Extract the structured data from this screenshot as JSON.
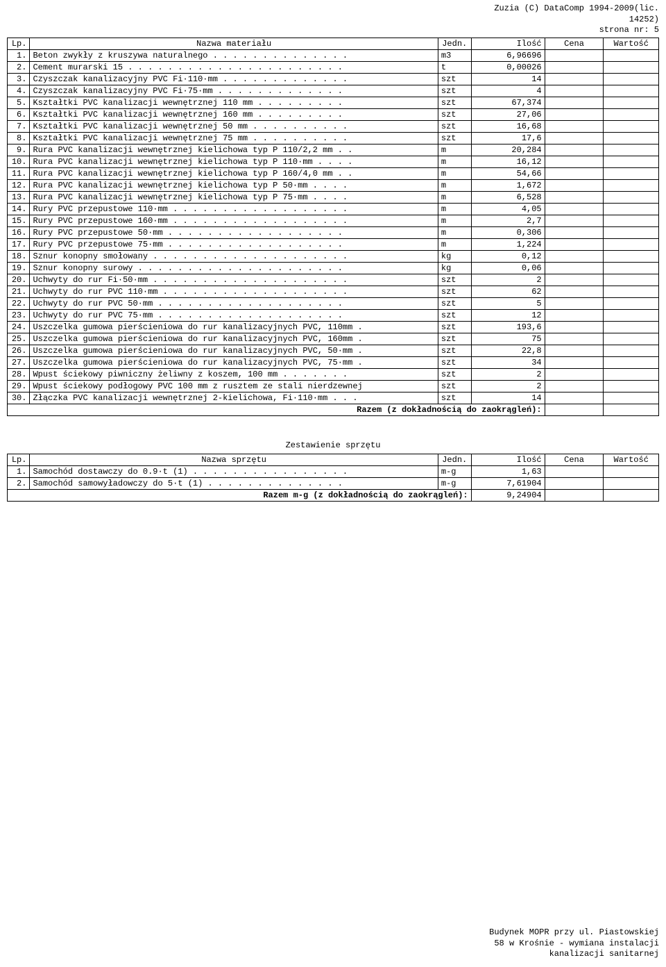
{
  "header": {
    "line1": "Zuzia (C) DataComp 1994-2009(lic.",
    "line2": "14252)",
    "line3": "strona nr:    5"
  },
  "materials_table": {
    "headers": {
      "lp": "Lp.",
      "nazwa": "Nazwa materiału",
      "jedn": "Jedn.",
      "ilosc": "Ilość",
      "cena": "Cena",
      "wartosc": "Wartość"
    },
    "rows": [
      {
        "lp": "1.",
        "nazwa": "Beton zwykły z kruszywa naturalnego . . . . . . . . . . . . . .",
        "jedn": "m3",
        "ilosc": "6,96696"
      },
      {
        "lp": "2.",
        "nazwa": "Cement murarski 15 . . . . . . . . . . . . . . . . . . . . . .",
        "jedn": "t",
        "ilosc": "0,00026"
      },
      {
        "lp": "3.",
        "nazwa": "Czyszczak kanalizacyjny PVC Fi·110·mm . . . . . . . . . . . . .",
        "jedn": "szt",
        "ilosc": "14"
      },
      {
        "lp": "4.",
        "nazwa": "Czyszczak kanalizacyjny PVC Fi·75·mm . . . . . . . . . . . . .",
        "jedn": "szt",
        "ilosc": "4"
      },
      {
        "lp": "5.",
        "nazwa": "Kształtki PVC kanalizacji wewnętrznej 110 mm . . . . . . . . .",
        "jedn": "szt",
        "ilosc": "67,374"
      },
      {
        "lp": "6.",
        "nazwa": "Kształtki PVC kanalizacji wewnętrznej 160 mm . . . . . . . . .",
        "jedn": "szt",
        "ilosc": "27,06"
      },
      {
        "lp": "7.",
        "nazwa": "Kształtki PVC kanalizacji wewnętrznej 50 mm . . . . . . . . . .",
        "jedn": "szt",
        "ilosc": "16,68"
      },
      {
        "lp": "8.",
        "nazwa": "Kształtki PVC kanalizacji wewnętrznej 75 mm . . . . . . . . . .",
        "jedn": "szt",
        "ilosc": "17,6"
      },
      {
        "lp": "9.",
        "nazwa": "Rura PVC kanalizacji wewnętrznej kielichowa typ P 110/2,2 mm . .",
        "jedn": "m",
        "ilosc": "20,284"
      },
      {
        "lp": "10.",
        "nazwa": "Rura PVC kanalizacji wewnętrznej kielichowa typ P 110·mm . . . .",
        "jedn": "m",
        "ilosc": "16,12"
      },
      {
        "lp": "11.",
        "nazwa": "Rura PVC kanalizacji wewnętrznej kielichowa typ P 160/4,0 mm . .",
        "jedn": "m",
        "ilosc": "54,66"
      },
      {
        "lp": "12.",
        "nazwa": "Rura PVC kanalizacji wewnętrznej kielichowa typ P 50·mm . . . .",
        "jedn": "m",
        "ilosc": "1,672"
      },
      {
        "lp": "13.",
        "nazwa": "Rura PVC kanalizacji wewnętrznej kielichowa typ P 75·mm . . . .",
        "jedn": "m",
        "ilosc": "6,528"
      },
      {
        "lp": "14.",
        "nazwa": "Rury PVC przepustowe 110·mm . . . . . . . . . . . . . . . . . .",
        "jedn": "m",
        "ilosc": "4,05"
      },
      {
        "lp": "15.",
        "nazwa": "Rury PVC przepustowe 160·mm . . . . . . . . . . . . . . . . . .",
        "jedn": "m",
        "ilosc": "2,7"
      },
      {
        "lp": "16.",
        "nazwa": "Rury PVC przepustowe 50·mm . . . . . . . . . . . . . . . . . .",
        "jedn": "m",
        "ilosc": "0,306"
      },
      {
        "lp": "17.",
        "nazwa": "Rury PVC przepustowe 75·mm . . . . . . . . . . . . . . . . . .",
        "jedn": "m",
        "ilosc": "1,224"
      },
      {
        "lp": "18.",
        "nazwa": "Sznur konopny smołowany . . . . . . . . . . . . . . . . . . . .",
        "jedn": "kg",
        "ilosc": "0,12"
      },
      {
        "lp": "19.",
        "nazwa": "Sznur konopny surowy . . . . . . . . . . . . . . . . . . . . .",
        "jedn": "kg",
        "ilosc": "0,06"
      },
      {
        "lp": "20.",
        "nazwa": "Uchwyty do rur Fi·50·mm . . . . . . . . . . . . . . . . . . . .",
        "jedn": "szt",
        "ilosc": "2"
      },
      {
        "lp": "21.",
        "nazwa": "Uchwyty do rur PVC 110·mm . . . . . . . . . . . . . . . . . . .",
        "jedn": "szt",
        "ilosc": "62"
      },
      {
        "lp": "22.",
        "nazwa": "Uchwyty do rur PVC 50·mm . . . . . . . . . . . . . . . . . . .",
        "jedn": "szt",
        "ilosc": "5"
      },
      {
        "lp": "23.",
        "nazwa": "Uchwyty do rur PVC 75·mm . . . . . . . . . . . . . . . . . . .",
        "jedn": "szt",
        "ilosc": "12"
      },
      {
        "lp": "24.",
        "nazwa": "Uszczelka gumowa pierścieniowa do rur kanalizacyjnych PVC, 110mm .",
        "jedn": "szt",
        "ilosc": "193,6"
      },
      {
        "lp": "25.",
        "nazwa": "Uszczelka gumowa pierścieniowa do rur kanalizacyjnych PVC, 160mm .",
        "jedn": "szt",
        "ilosc": "75"
      },
      {
        "lp": "26.",
        "nazwa": "Uszczelka gumowa pierścieniowa do rur kanalizacyjnych PVC, 50·mm .",
        "jedn": "szt",
        "ilosc": "22,8"
      },
      {
        "lp": "27.",
        "nazwa": "Uszczelka gumowa pierścieniowa do rur kanalizacyjnych PVC, 75·mm .",
        "jedn": "szt",
        "ilosc": "34"
      },
      {
        "lp": "28.",
        "nazwa": "Wpust ściekowy piwniczny żeliwny z koszem, 100 mm . . . . . . .",
        "jedn": "szt",
        "ilosc": "2"
      },
      {
        "lp": "29.",
        "nazwa": "Wpust ściekowy podłogowy PVC 100 mm z rusztem ze stali nierdzewnej",
        "jedn": "szt",
        "ilosc": "2"
      },
      {
        "lp": "30.",
        "nazwa": "Złączka PVC kanalizacji wewnętrznej 2-kielichowa, Fi·110·mm . . .",
        "jedn": "szt",
        "ilosc": "14"
      }
    ],
    "razem_label": "Razem (z dokładnością do zaokrągleń):"
  },
  "equipment_section_title": "Zestawienie sprzętu",
  "equipment_table": {
    "headers": {
      "lp": "Lp.",
      "nazwa": "Nazwa sprzętu",
      "jedn": "Jedn.",
      "ilosc": "Ilość",
      "cena": "Cena",
      "wartosc": "Wartość"
    },
    "rows": [
      {
        "lp": "1.",
        "nazwa": "Samochód dostawczy do 0.9·t (1) . . . . . . . . . . . . . . . .",
        "jedn": "m-g",
        "ilosc": "1,63"
      },
      {
        "lp": "2.",
        "nazwa": "Samochód samowyładowczy do 5·t (1) . . . . . . . . . . . . . .",
        "jedn": "m-g",
        "ilosc": "7,61904"
      }
    ],
    "razem_label": "Razem m-g (z dokładnością do zaokrągleń):",
    "razem_value": "9,24904"
  },
  "footer": {
    "line1": "Budynek MOPR przy ul. Piastowskiej",
    "line2": "58 w Krośnie - wymiana instalacji",
    "line3": "kanalizacji sanitarnej"
  }
}
